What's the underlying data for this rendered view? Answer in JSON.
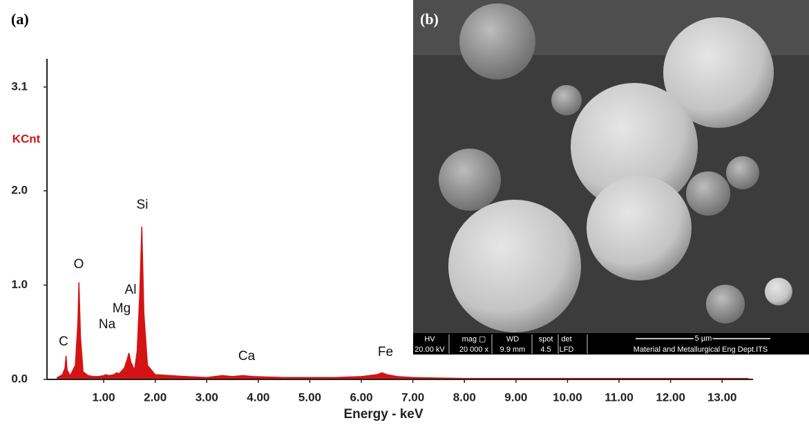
{
  "chart_data": {
    "type": "area",
    "y_label": "KCnt",
    "x_label": "Energy - keV",
    "color": "#d41414",
    "x": [
      0.1,
      0.2,
      0.25,
      0.27,
      0.29,
      0.35,
      0.45,
      0.5,
      0.52,
      0.55,
      0.6,
      0.7,
      0.8,
      0.9,
      1.0,
      1.04,
      1.1,
      1.2,
      1.25,
      1.3,
      1.4,
      1.45,
      1.49,
      1.53,
      1.6,
      1.65,
      1.7,
      1.74,
      1.78,
      1.85,
      2.0,
      2.3,
      2.6,
      3.0,
      3.3,
      3.5,
      3.7,
      3.9,
      4.5,
      5.0,
      5.5,
      6.0,
      6.3,
      6.4,
      6.5,
      6.7,
      7.0,
      7.5,
      8.0,
      9.0,
      10,
      11,
      12,
      13,
      13.5
    ],
    "values": [
      0.02,
      0.05,
      0.12,
      0.25,
      0.1,
      0.04,
      0.15,
      0.6,
      1.03,
      0.45,
      0.08,
      0.04,
      0.03,
      0.03,
      0.04,
      0.05,
      0.04,
      0.05,
      0.07,
      0.06,
      0.12,
      0.2,
      0.28,
      0.18,
      0.1,
      0.3,
      0.9,
      1.62,
      0.7,
      0.15,
      0.05,
      0.04,
      0.03,
      0.02,
      0.04,
      0.03,
      0.04,
      0.03,
      0.02,
      0.02,
      0.02,
      0.03,
      0.05,
      0.07,
      0.05,
      0.03,
      0.02,
      0.015,
      0.01,
      0.01,
      0.01,
      0.01,
      0.01,
      0.01,
      0.01
    ],
    "xlim": [
      -0.1,
      13.6
    ],
    "ylim": [
      0,
      3.4
    ],
    "xticks": [
      {
        "value": 1,
        "label": "1.00"
      },
      {
        "value": 2,
        "label": "2.00"
      },
      {
        "value": 3,
        "label": "3.00"
      },
      {
        "value": 4,
        "label": "4.00"
      },
      {
        "value": 5,
        "label": "5.00"
      },
      {
        "value": 6,
        "label": "6.00"
      },
      {
        "value": 7,
        "label": "7.00"
      },
      {
        "value": 8,
        "label": "8.00"
      },
      {
        "value": 9,
        "label": "9.00"
      },
      {
        "value": 10,
        "label": "10.00"
      },
      {
        "value": 11,
        "label": "11.00"
      },
      {
        "value": 12,
        "label": "12.00"
      },
      {
        "value": 13,
        "label": "13.00"
      }
    ],
    "yticks": [
      {
        "value": 0,
        "label": "0.0"
      },
      {
        "value": 1,
        "label": "1.0"
      },
      {
        "value": 2,
        "label": "2.0"
      },
      3.1
    ],
    "annotations": [
      "C",
      "O",
      "Na",
      "Mg",
      "Al",
      "Si",
      "Ca",
      "Fe"
    ]
  },
  "panel_labels": [
    "(a)",
    "(b)"
  ],
  "sem_info": {
    "headers": [
      "HV",
      "mag ▢",
      "WD",
      "spot",
      "det"
    ],
    "values": [
      "20.00 kV",
      "20 000 x",
      "9.9 mm",
      "4.5",
      "LFD"
    ],
    "scale": "5 µm",
    "lab": "Material and Metallurgical Eng Dept.ITS"
  }
}
